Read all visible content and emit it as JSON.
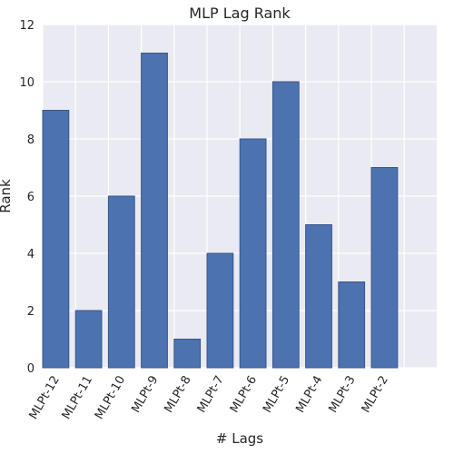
{
  "chart_data": {
    "type": "bar",
    "title": "MLP Lag Rank",
    "xlabel": "# Lags",
    "ylabel": "Rank",
    "categories": [
      "MLPt-12",
      "MLPt-11",
      "MLPt-10",
      "MLPt-9",
      "MLPt-8",
      "MLPt-7",
      "MLPt-6",
      "MLPt-5",
      "MLPt-4",
      "MLPt-3",
      "MLPt-2"
    ],
    "values": [
      9,
      2,
      6,
      11,
      1,
      4,
      8,
      10,
      5,
      3,
      7
    ],
    "ylim": [
      0,
      12
    ],
    "yticks": [
      0,
      2,
      4,
      6,
      8,
      10,
      12
    ],
    "grid": true,
    "colors": {
      "bar": "#4c72b0",
      "bar_edge": "#3a5587",
      "plot_background": "#eaeaf2",
      "grid": "#ffffff",
      "text": "#262626"
    }
  }
}
